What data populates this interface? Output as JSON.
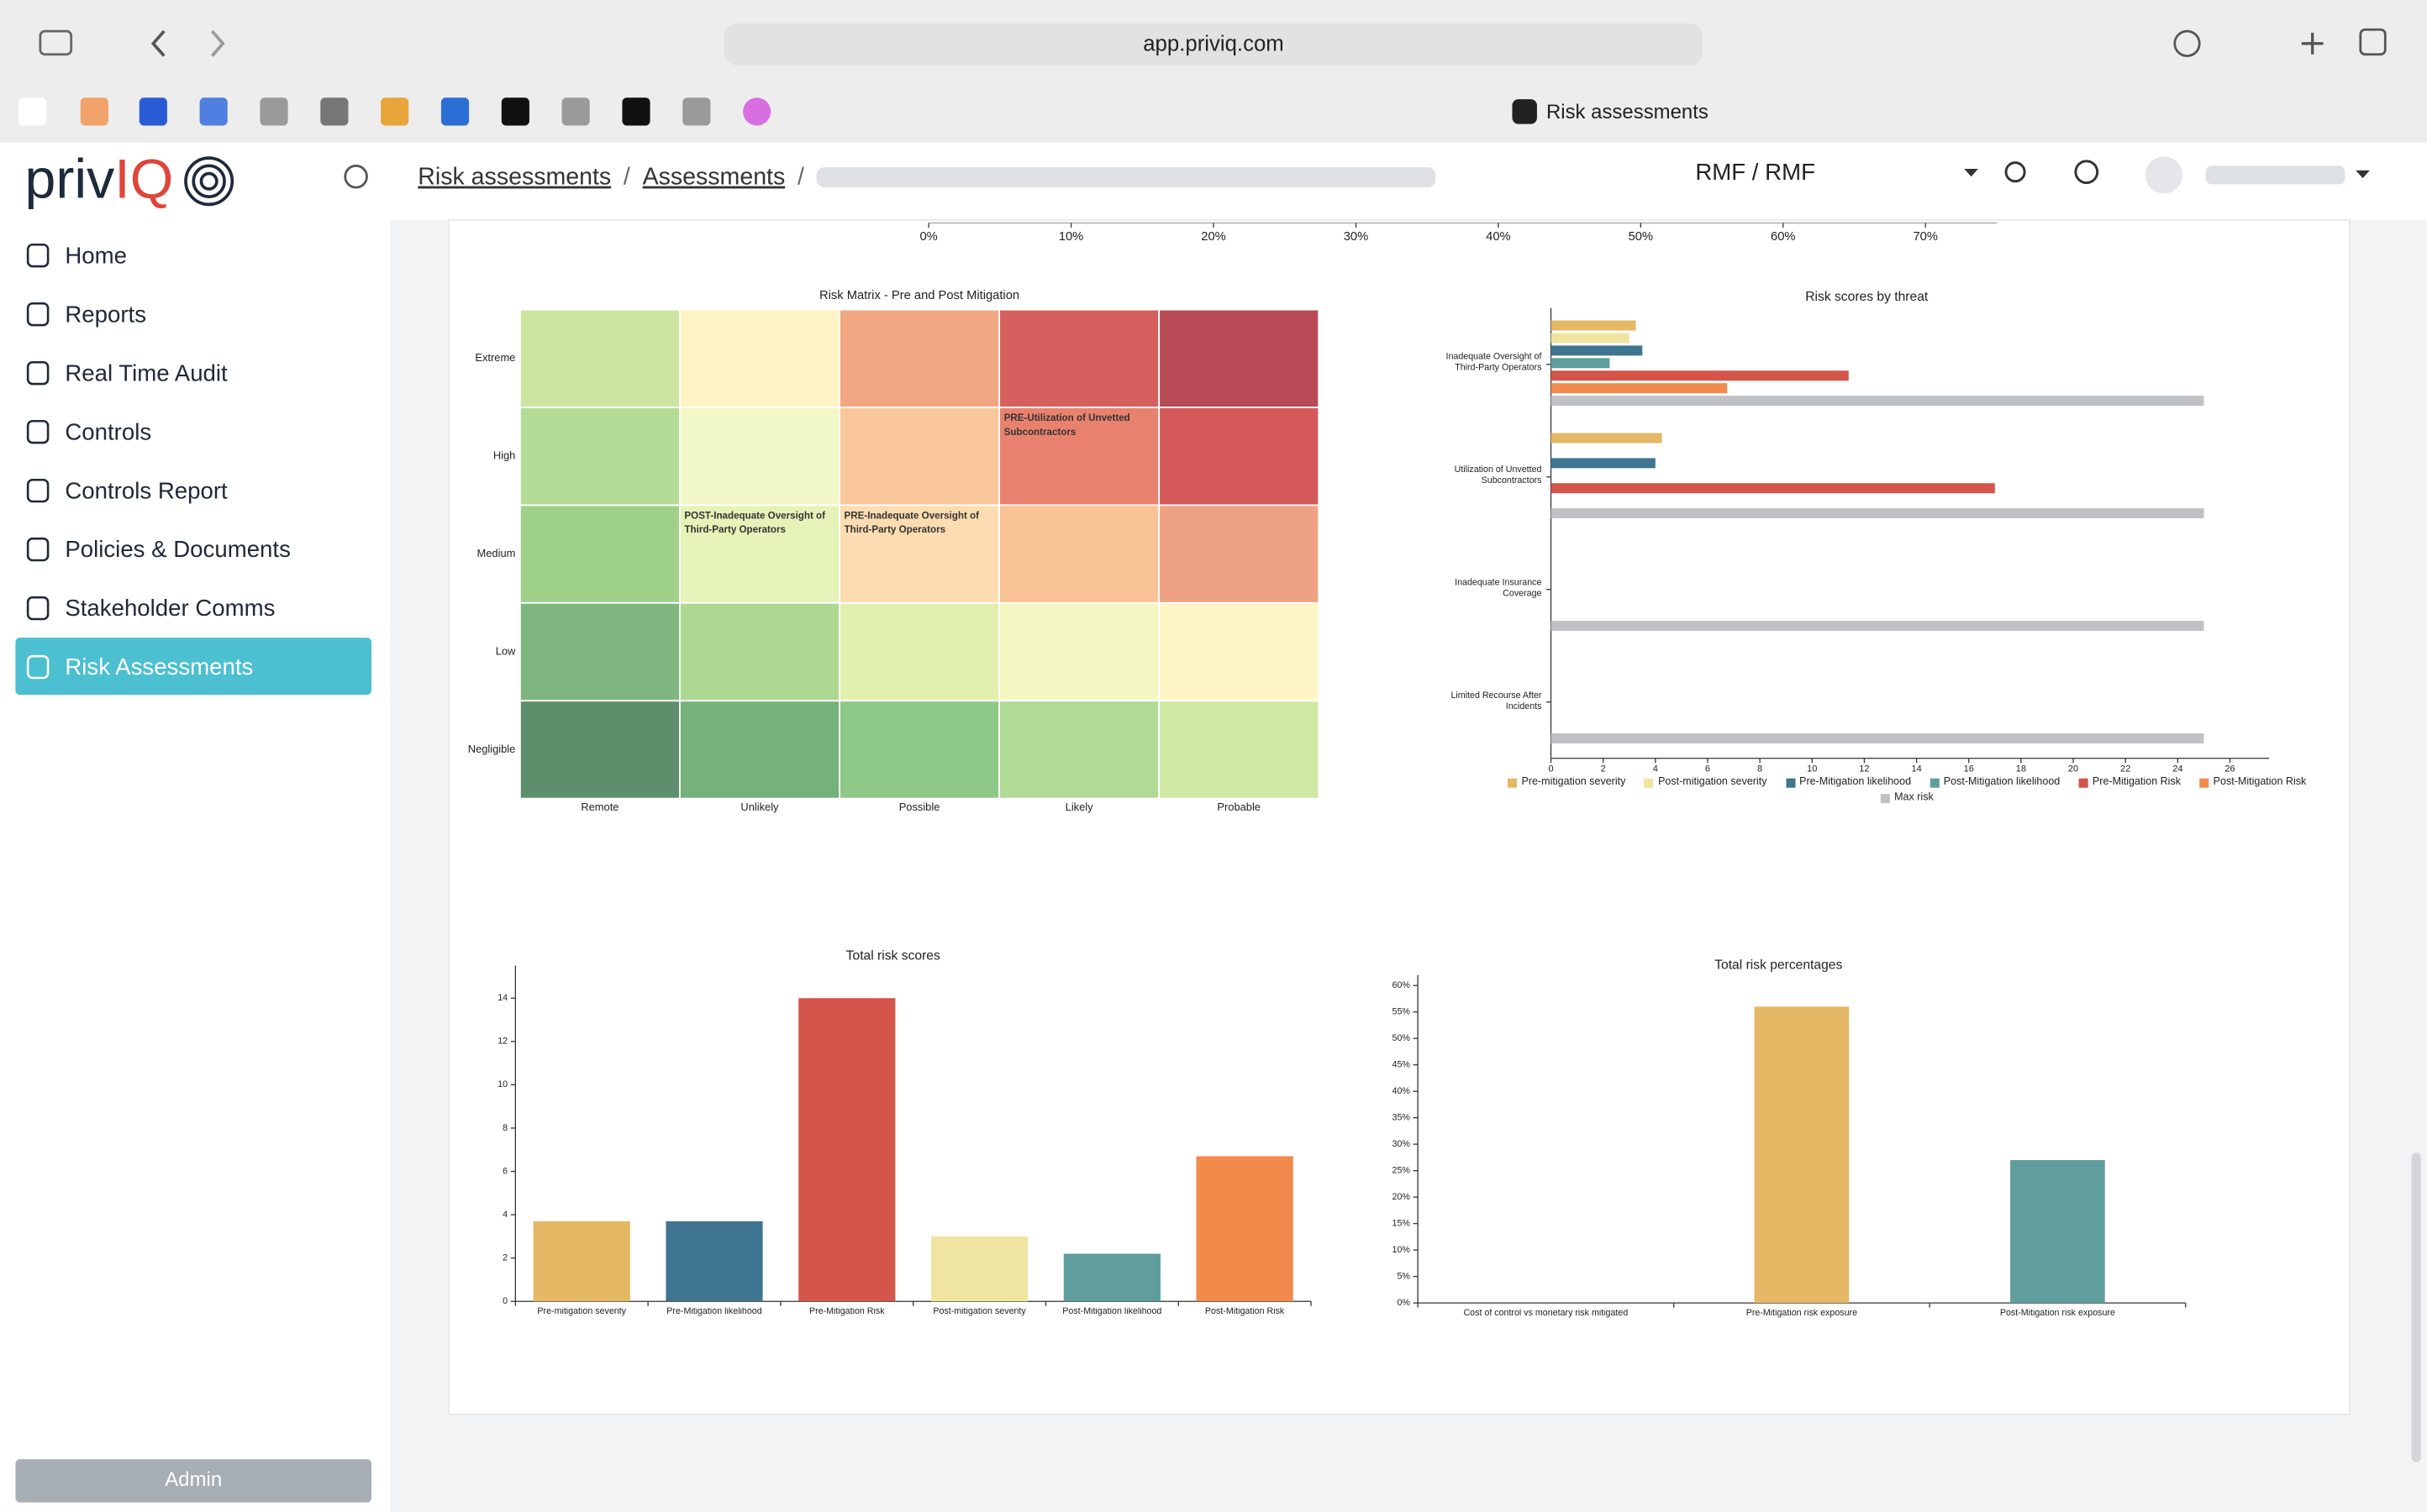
{
  "browser": {
    "url": "app.priviq.com",
    "tab_title": "Risk assessments"
  },
  "sidebar": {
    "logo": [
      "priv",
      "IQ"
    ],
    "nav": [
      {
        "label": "Home"
      },
      {
        "label": "Reports"
      },
      {
        "label": "Real Time Audit"
      },
      {
        "label": "Controls"
      },
      {
        "label": "Controls Report"
      },
      {
        "label": "Policies & Documents"
      },
      {
        "label": "Stakeholder Comms"
      },
      {
        "label": "Risk Assessments",
        "active": true
      }
    ],
    "admin_button": "Admin"
  },
  "header": {
    "breadcrumbs": [
      "Risk assessments",
      "Assessments"
    ],
    "breadcrumb_separator": "/",
    "framework": "RMF / RMF"
  },
  "chart_data": [
    {
      "type": "axis",
      "xlim": [
        0,
        75
      ],
      "xticks": [
        {
          "value": 0,
          "label": "0%"
        },
        {
          "value": 10,
          "label": "10%"
        },
        {
          "value": 20,
          "label": "20%"
        },
        {
          "value": 30,
          "label": "30%"
        },
        {
          "value": 40,
          "label": "40%"
        },
        {
          "value": 50,
          "label": "50%"
        },
        {
          "value": 60,
          "label": "60%"
        },
        {
          "value": 70,
          "label": "70%"
        }
      ]
    },
    {
      "type": "heatmap",
      "title": "Risk Matrix - Pre and Post Mitigation",
      "rows": [
        "Extreme",
        "High",
        "Medium",
        "Low",
        "Negligible"
      ],
      "columns": [
        "Remote",
        "Unlikely",
        "Possible",
        "Likely",
        "Probable"
      ],
      "cell_colors": [
        [
          "#cce5a0",
          "#fdf3c4",
          "#f2a783",
          "#d6605e",
          "#b84a56"
        ],
        [
          "#b5dc97",
          "#f2f7c8",
          "#f9c79b",
          "#e8826e",
          "#d4585a"
        ],
        [
          "#9fd18a",
          "#e5f2b8",
          "#fcdcb0",
          "#f9c395",
          "#eea283"
        ],
        [
          "#7fb67f",
          "#acd892",
          "#e2f0ae",
          "#f5f7c2",
          "#fef5c5"
        ],
        [
          "#5e8f6c",
          "#76b07a",
          "#8dc888",
          "#b2da97",
          "#cfe8a4"
        ]
      ],
      "cell_labels": [
        [
          null,
          null,
          null,
          null,
          null
        ],
        [
          null,
          null,
          null,
          "PRE-Utilization of Unvetted Subcontractors",
          null
        ],
        [
          null,
          "POST-Inadequate Oversight of Third-Party Operators",
          "PRE-Inadequate Oversight of Third-Party Operators",
          null,
          null
        ],
        [
          null,
          null,
          null,
          null,
          null
        ],
        [
          null,
          null,
          null,
          null,
          null
        ]
      ]
    },
    {
      "type": "bar",
      "orientation": "horizontal",
      "title": "Risk scores by threat",
      "categories": [
        "Inadequate Oversight of Third-Party Operators",
        "Utilization of Unvetted Subcontractors",
        "Inadequate Insurance Coverage",
        "Limited Recourse After Incidents"
      ],
      "xlim": [
        0,
        27.5
      ],
      "xticks": [
        0,
        2,
        4,
        6,
        8,
        10,
        12,
        14,
        16,
        18,
        20,
        22,
        24,
        26
      ],
      "series": [
        {
          "name": "Pre-mitigation severity",
          "color": "#e4b864",
          "values": [
            3.25,
            4.25,
            null,
            null
          ]
        },
        {
          "name": "Post-mitigation severity",
          "color": "#efe5a0",
          "values": [
            3,
            null,
            null,
            null
          ]
        },
        {
          "name": "Pre-Mitigation likelihood",
          "color": "#3f7590",
          "values": [
            3.5,
            4,
            null,
            null
          ]
        },
        {
          "name": "Post-Mitigation likelihood",
          "color": "#5f9e9d",
          "values": [
            2.25,
            null,
            null,
            null
          ]
        },
        {
          "name": "Pre-Mitigation Risk",
          "color": "#d4554a",
          "values": [
            11.4,
            17,
            null,
            null
          ]
        },
        {
          "name": "Post-Mitigation Risk",
          "color": "#f28a4c",
          "values": [
            6.75,
            null,
            null,
            null
          ]
        },
        {
          "name": "Max risk",
          "color": "#bfc1c4",
          "values": [
            25,
            25,
            25,
            25
          ]
        }
      ]
    },
    {
      "type": "bar",
      "orientation": "vertical",
      "title": "Total risk scores",
      "categories": [
        "Pre-mitigation severity",
        "Pre-Mitigation likelihood",
        "Pre-Mitigation Risk",
        "Post-mitigation severity",
        "Post-Mitigation likelihood",
        "Post-Mitigation Risk"
      ],
      "values": [
        3.7,
        3.7,
        14,
        3,
        2.2,
        6.7
      ],
      "colors": [
        "#e4b864",
        "#3f7590",
        "#d4554a",
        "#efe5a0",
        "#5f9e9d",
        "#f28a4c"
      ],
      "ylim": [
        0,
        15.5
      ],
      "yticks": [
        0,
        2,
        4,
        6,
        8,
        10,
        12,
        14
      ]
    },
    {
      "type": "bar",
      "orientation": "vertical",
      "title": "Total risk percentages",
      "categories": [
        "Cost of control vs monetary risk mitigated",
        "Pre-Mitigation risk exposure",
        "Post-Mitigation risk exposure"
      ],
      "values": [
        0,
        56,
        27
      ],
      "colors": [
        null,
        "#e4b864",
        "#5f9e9d"
      ],
      "ylim": [
        0,
        62
      ],
      "yticks": [
        {
          "value": 0,
          "label": "0%"
        },
        {
          "value": 5,
          "label": "5%"
        },
        {
          "value": 10,
          "label": "10%"
        },
        {
          "value": 15,
          "label": "15%"
        },
        {
          "value": 20,
          "label": "20%"
        },
        {
          "value": 25,
          "label": "25%"
        },
        {
          "value": 30,
          "label": "30%"
        },
        {
          "value": 35,
          "label": "35%"
        },
        {
          "value": 40,
          "label": "40%"
        },
        {
          "value": 45,
          "label": "45%"
        },
        {
          "value": 50,
          "label": "50%"
        },
        {
          "value": 55,
          "label": "55%"
        },
        {
          "value": 60,
          "label": "60%"
        }
      ]
    }
  ]
}
